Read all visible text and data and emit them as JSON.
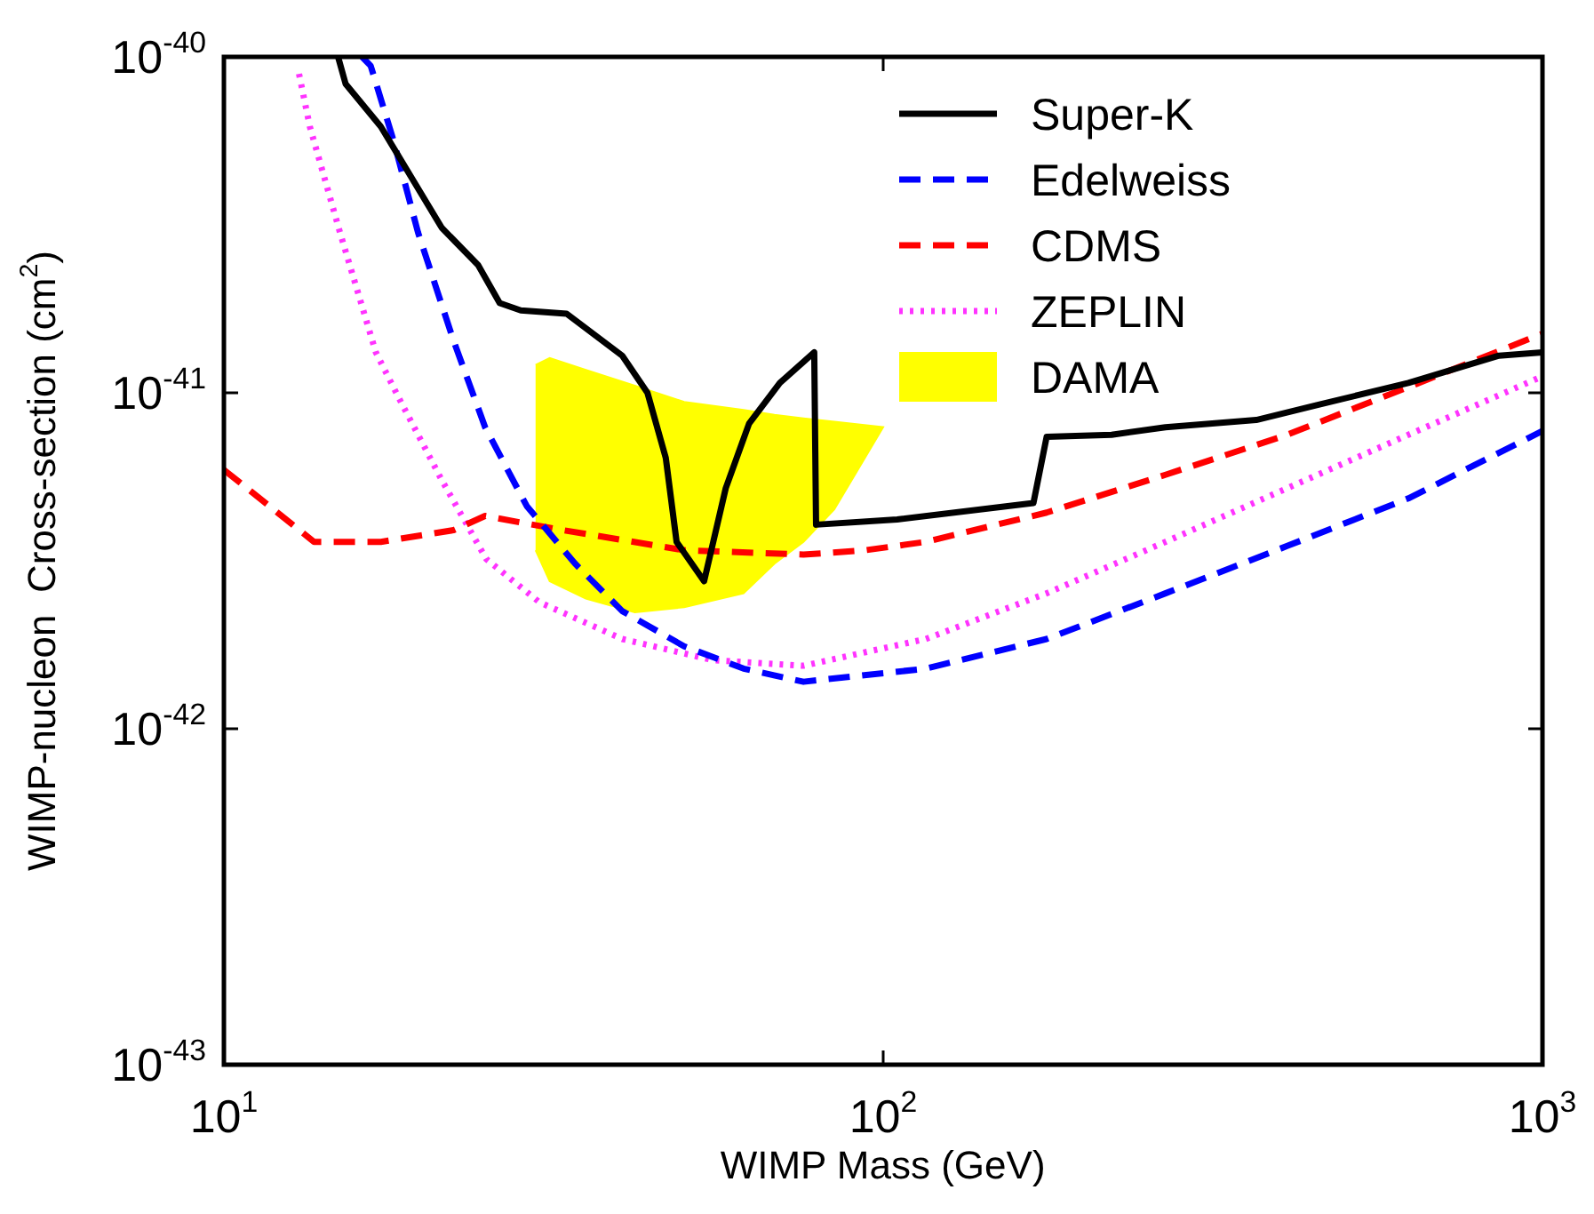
{
  "chart_data": {
    "type": "line",
    "xlabel": "WIMP Mass (GeV)",
    "ylabel": "WIMP-nucleon  Cross-section (cm$^{2}$)",
    "log": "xy",
    "grid": false,
    "legend": "top right",
    "marker": "none",
    "xlim": [
      10,
      1000
    ],
    "xticks": [
      {
        "value": 10,
        "label": "10$^{1}$"
      },
      {
        "value": 100,
        "label": "10$^{2}$"
      },
      {
        "value": 1000,
        "label": "10$^{3}$"
      }
    ],
    "ylim": [
      1e-43,
      1e-40
    ],
    "yticks": [
      {
        "value": 1e-43,
        "label": "10$^{-43}$"
      },
      {
        "value": 1e-42,
        "label": "10$^{-42}$"
      },
      {
        "value": 1e-41,
        "label": "10$^{-41}$"
      },
      {
        "value": 1e-40,
        "label": "10$^{-40}$"
      }
    ],
    "series": [
      {
        "name": "Super-K",
        "color": "#000000",
        "line_style": "solid",
        "x": [
          14.9,
          15.3,
          17.3,
          21.4,
          24.3,
          26.2,
          28.2,
          33.1,
          40.2,
          43.9,
          46.8,
          48.6,
          53.5,
          57.7,
          62.6,
          69.7,
          78.6,
          79.1,
          105,
          169,
          177,
          222,
          268,
          368,
          456,
          626,
          859,
          1000
        ],
        "values": [
          1e-40,
          8.3e-41,
          6.2e-41,
          3.1e-41,
          2.4e-41,
          1.85e-41,
          1.76e-41,
          1.72e-41,
          1.29e-41,
          1e-41,
          6.4e-42,
          3.6e-42,
          2.75e-42,
          5.2e-42,
          8.1e-42,
          1.07e-41,
          1.32e-41,
          4.05e-42,
          4.2e-42,
          4.7e-42,
          7.4e-42,
          7.5e-42,
          7.9e-42,
          8.3e-42,
          9.2e-42,
          1.07e-41,
          1.29e-41,
          1.32e-41
        ]
      },
      {
        "name": "Edelweiss",
        "color": "#0000ff",
        "line_style": "dashed",
        "x": [
          16.2,
          16.7,
          18.1,
          19.7,
          22.3,
          24.9,
          28.8,
          34.1,
          40.2,
          49.9,
          61.4,
          75.7,
          116,
          177,
          268,
          410,
          626,
          1000
        ],
        "values": [
          1e-40,
          9.4e-41,
          5.6e-41,
          3e-41,
          1.43e-41,
          7.9e-42,
          4.6e-42,
          3.1e-42,
          2.24e-42,
          1.76e-42,
          1.51e-42,
          1.38e-42,
          1.51e-42,
          1.85e-42,
          2.53e-42,
          3.5e-42,
          4.85e-42,
          7.7e-42
        ]
      },
      {
        "name": "CDMS",
        "color": "#ff0000",
        "line_style": "dashed",
        "x": [
          10,
          13.7,
          17.3,
          22.3,
          24.9,
          32.7,
          49.9,
          75.7,
          94,
          116,
          177,
          268,
          410,
          626,
          1000
        ],
        "values": [
          5.9e-42,
          3.6e-42,
          3.6e-42,
          3.9e-42,
          4.3e-42,
          3.9e-42,
          3.4e-42,
          3.3e-42,
          3.4e-42,
          3.6e-42,
          4.4e-42,
          5.7e-42,
          7.5e-42,
          1.04e-41,
          1.5e-41
        ]
      },
      {
        "name": "ZEPLIN",
        "color": "#ff33ff",
        "line_style": "dotted",
        "x": [
          13.0,
          13.5,
          15.0,
          17.0,
          18.5,
          21.4,
          25.0,
          30.1,
          40.2,
          55.2,
          75.7,
          116,
          177,
          268,
          410,
          626,
          1000
        ],
        "values": [
          8.9e-41,
          6.2e-41,
          3e-41,
          1.32e-41,
          9.5e-42,
          5.5e-42,
          3.2e-42,
          2.38e-42,
          1.85e-42,
          1.6e-42,
          1.54e-42,
          1.85e-42,
          2.53e-42,
          3.6e-42,
          5.2e-42,
          7.5e-42,
          1.12e-41
        ]
      },
      {
        "name": "DAMA",
        "type": "area",
        "color": "#ffff00",
        "x": [
          29.7,
          31.2,
          35.4,
          42.0,
          49.9,
          61.4,
          68.4,
          75.7,
          84.3,
          100,
          84.3,
          75.7,
          68.4,
          61.4,
          49.9,
          42.0,
          35.4,
          31.2,
          29.7
        ],
        "values": [
          1.21e-41,
          1.27e-41,
          1.17e-41,
          1.05e-41,
          9.4e-42,
          8.9e-42,
          8.6e-42,
          8.4e-42,
          8.2e-42,
          7.9e-42,
          4.5e-42,
          3.6e-42,
          3.1e-42,
          2.53e-42,
          2.3e-42,
          2.22e-42,
          2.44e-42,
          2.75e-42,
          3.4e-42
        ]
      }
    ]
  }
}
